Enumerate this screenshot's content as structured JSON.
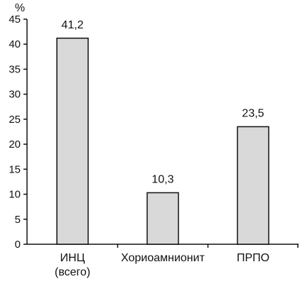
{
  "chart_data": {
    "type": "bar",
    "title": "",
    "xlabel": "",
    "ylabel": "",
    "unit": "%",
    "categories": [
      [
        "ИНЦ",
        "(всего)"
      ],
      [
        "Хориоамнионит"
      ],
      [
        "ПРПО"
      ]
    ],
    "values": [
      41.2,
      10.3,
      23.5
    ],
    "value_labels": [
      "41,2",
      "10,3",
      "23,5"
    ],
    "ylim": [
      0,
      45
    ],
    "yticks": [
      0,
      5,
      10,
      15,
      20,
      25,
      30,
      35,
      40,
      45
    ],
    "grid": false,
    "legend": "none",
    "colors": {
      "bar_fill": "#d9d9d9",
      "bar_stroke": "#111111",
      "axis": "#111111",
      "text": "#111111"
    }
  }
}
